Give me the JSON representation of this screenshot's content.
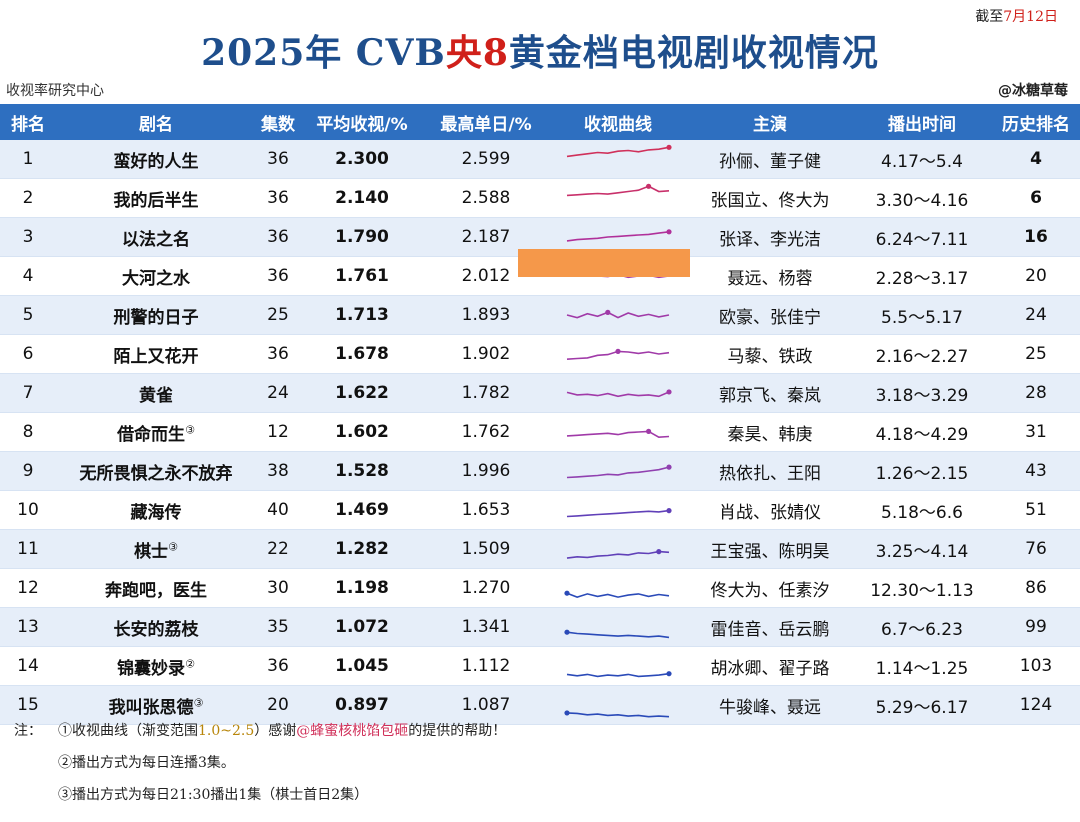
{
  "date_prefix": "截至",
  "date_red": "7月12日",
  "title_a": "2025年 CVB",
  "title_red": "央8",
  "title_b": "黄金档电视剧收视情况",
  "source_left": "收视率研究中心",
  "source_right": "@冰糖草莓",
  "headers": [
    "排名",
    "剧名",
    "集数",
    "平均收视/%",
    "最高单日/%",
    "收视曲线",
    "主演",
    "播出时间",
    "历史排名"
  ],
  "rows": [
    {
      "rank": "1",
      "name": "蛮好的人生",
      "sup": "",
      "ep": "36",
      "avg": "2.300",
      "max": "2.599",
      "cast": "孙俪、董子健",
      "time": "4.17～5.4",
      "hist": "4"
    },
    {
      "rank": "2",
      "name": "我的后半生",
      "sup": "",
      "ep": "36",
      "avg": "2.140",
      "max": "2.588",
      "cast": "张国立、佟大为",
      "time": "3.30～4.16",
      "hist": "6"
    },
    {
      "rank": "3",
      "name": "以法之名",
      "sup": "",
      "ep": "36",
      "avg": "1.790",
      "max": "2.187",
      "cast": "张译、李光洁",
      "time": "6.24～7.11",
      "hist": "16"
    },
    {
      "rank": "4",
      "name": "大河之水",
      "sup": "",
      "ep": "36",
      "avg": "1.761",
      "max": "2.012",
      "cast": "聂远、杨蓉",
      "time": "2.28～3.17",
      "hist": "20"
    },
    {
      "rank": "5",
      "name": "刑警的日子",
      "sup": "",
      "ep": "25",
      "avg": "1.713",
      "max": "1.893",
      "cast": "欧豪、张佳宁",
      "time": "5.5～5.17",
      "hist": "24"
    },
    {
      "rank": "6",
      "name": "陌上又花开",
      "sup": "",
      "ep": "36",
      "avg": "1.678",
      "max": "1.902",
      "cast": "马藜、铁政",
      "time": "2.16～2.27",
      "hist": "25"
    },
    {
      "rank": "7",
      "name": "黄雀",
      "sup": "",
      "ep": "24",
      "avg": "1.622",
      "max": "1.782",
      "cast": "郭京飞、秦岚",
      "time": "3.18～3.29",
      "hist": "28"
    },
    {
      "rank": "8",
      "name": "借命而生",
      "sup": "③",
      "ep": "12",
      "avg": "1.602",
      "max": "1.762",
      "cast": "秦昊、韩庚",
      "time": "4.18～4.29",
      "hist": "31"
    },
    {
      "rank": "9",
      "name": "无所畏惧之永不放弃",
      "sup": "",
      "ep": "38",
      "avg": "1.528",
      "max": "1.996",
      "cast": "热依扎、王阳",
      "time": "1.26～2.15",
      "hist": "43"
    },
    {
      "rank": "10",
      "name": "藏海传",
      "sup": "",
      "ep": "40",
      "avg": "1.469",
      "max": "1.653",
      "cast": "肖战、张婧仪",
      "time": "5.18～6.6",
      "hist": "51"
    },
    {
      "rank": "11",
      "name": "棋士",
      "sup": "③",
      "ep": "22",
      "avg": "1.282",
      "max": "1.509",
      "cast": "王宝强、陈明昊",
      "time": "3.25～4.14",
      "hist": "76"
    },
    {
      "rank": "12",
      "name": "奔跑吧，医生",
      "sup": "",
      "ep": "30",
      "avg": "1.198",
      "max": "1.270",
      "cast": "佟大为、任素汐",
      "time": "12.30～1.13",
      "hist": "86"
    },
    {
      "rank": "13",
      "name": "长安的荔枝",
      "sup": "",
      "ep": "35",
      "avg": "1.072",
      "max": "1.341",
      "cast": "雷佳音、岳云鹏",
      "time": "6.7～6.23",
      "hist": "99"
    },
    {
      "rank": "14",
      "name": "锦囊妙录",
      "sup": "②",
      "ep": "36",
      "avg": "1.045",
      "max": "1.112",
      "cast": "胡冰卿、翟子路",
      "time": "1.14～1.25",
      "hist": "103"
    },
    {
      "rank": "15",
      "name": "我叫张思德",
      "sup": "③",
      "ep": "20",
      "avg": "0.897",
      "max": "1.087",
      "cast": "牛骏峰、聂远",
      "time": "5.29～6.17",
      "hist": "124"
    }
  ],
  "curves": [
    {
      "values": [
        1.9,
        2.0,
        2.1,
        2.2,
        2.15,
        2.3,
        2.35,
        2.25,
        2.4,
        2.45,
        2.6
      ],
      "color": "#d0305a"
    },
    {
      "values": [
        1.9,
        1.95,
        2.0,
        2.05,
        2.0,
        2.1,
        2.2,
        2.3,
        2.6,
        2.2,
        2.25
      ],
      "color": "#c8306a"
    },
    {
      "values": [
        1.4,
        1.5,
        1.55,
        1.6,
        1.7,
        1.75,
        1.8,
        1.85,
        1.9,
        2.0,
        2.1
      ],
      "color": "#b0309a"
    },
    {
      "values": [
        1.9,
        1.75,
        1.8,
        1.7,
        1.65,
        1.8,
        1.6,
        1.7,
        1.75,
        1.6,
        1.7
      ],
      "color": "#a03aa8"
    },
    {
      "values": [
        1.7,
        1.5,
        1.8,
        1.6,
        1.9,
        1.5,
        1.85,
        1.6,
        1.75,
        1.55,
        1.7
      ],
      "color": "#a03aa8"
    },
    {
      "values": [
        1.3,
        1.35,
        1.4,
        1.6,
        1.65,
        1.9,
        1.85,
        1.75,
        1.85,
        1.7,
        1.8
      ],
      "color": "#a03aa8"
    },
    {
      "values": [
        1.75,
        1.55,
        1.6,
        1.5,
        1.65,
        1.45,
        1.6,
        1.5,
        1.55,
        1.45,
        1.78
      ],
      "color": "#a03aa8"
    },
    {
      "values": [
        1.4,
        1.45,
        1.5,
        1.55,
        1.6,
        1.5,
        1.65,
        1.7,
        1.75,
        1.3,
        1.35
      ],
      "color": "#a03aa8"
    },
    {
      "values": [
        1.2,
        1.25,
        1.3,
        1.35,
        1.45,
        1.4,
        1.55,
        1.6,
        1.7,
        1.8,
        2.0
      ],
      "color": "#9040b0"
    },
    {
      "values": [
        1.2,
        1.25,
        1.3,
        1.35,
        1.4,
        1.45,
        1.5,
        1.55,
        1.6,
        1.55,
        1.65
      ],
      "color": "#6040b8"
    },
    {
      "values": [
        1.0,
        1.1,
        1.05,
        1.15,
        1.2,
        1.3,
        1.25,
        1.4,
        1.35,
        1.5,
        1.45
      ],
      "color": "#6040b8"
    },
    {
      "values": [
        1.3,
        1.0,
        1.25,
        1.05,
        1.2,
        1.0,
        1.15,
        1.25,
        1.05,
        1.2,
        1.1
      ],
      "color": "#2a4ab8"
    },
    {
      "values": [
        1.3,
        1.2,
        1.15,
        1.1,
        1.05,
        1.0,
        1.05,
        1.0,
        0.95,
        1.0,
        0.9
      ],
      "color": "#2a4ab8"
    },
    {
      "values": [
        1.05,
        0.95,
        1.05,
        0.9,
        1.0,
        0.95,
        1.05,
        0.9,
        0.95,
        1.0,
        1.11
      ],
      "color": "#2a4ab8"
    },
    {
      "values": [
        1.09,
        1.05,
        0.95,
        1.0,
        0.9,
        0.95,
        0.85,
        0.9,
        0.8,
        0.85,
        0.8
      ],
      "color": "#2a4ab8"
    }
  ],
  "curve_range": [
    0.7,
    2.7
  ],
  "mask_color": "#f5984a",
  "note_label": "注：",
  "note1_a": "①收视曲线（渐变范围",
  "note1_b": "1.0~2.5",
  "note1_c": "）感谢",
  "note1_d": "@蜂蜜核桃馅包砸",
  "note1_e": "的提供的帮助！",
  "note2": "②播出方式为每日连播3集。",
  "note3": "③播出方式为每日21:30播出1集（棋士首日2集）"
}
